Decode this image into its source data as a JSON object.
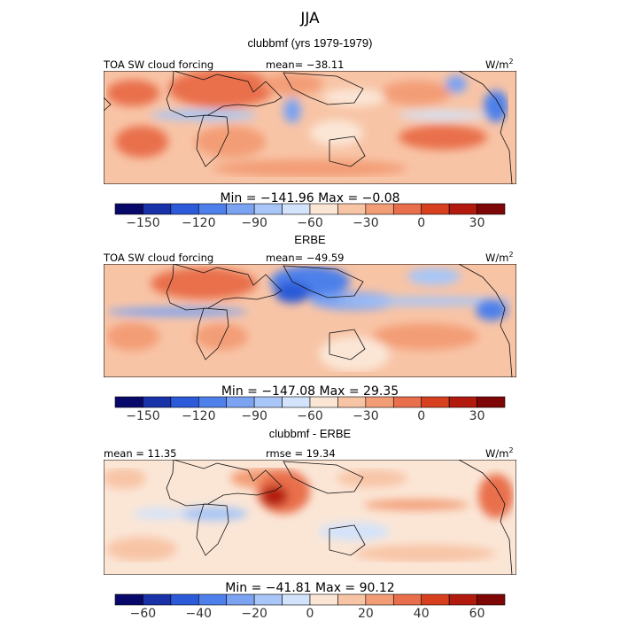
{
  "header": {
    "season": "JJA",
    "subtitle": "clubbmf (yrs 1979-1979)"
  },
  "chart_data": [
    {
      "type": "heatmap",
      "title": "clubbmf (yrs 1979-1979)",
      "left_label": "TOA SW cloud forcing",
      "center_label": "mean= −38.11",
      "units_text": "W/m",
      "units_exp": "2",
      "stats_label": "Min = −141.96 Max =  −0.08",
      "min": -141.96,
      "max": -0.08,
      "mean": -38.11,
      "colorbar": {
        "levels": [
          -165,
          -150,
          -135,
          -120,
          -105,
          -90,
          -75,
          -60,
          -45,
          -30,
          -15,
          0,
          15,
          30,
          45
        ],
        "tick_values": [
          -150,
          -120,
          -90,
          -60,
          -30,
          0,
          30
        ],
        "tick_labels": [
          "−150",
          "−120",
          "−90",
          "−60",
          "−30",
          "0",
          "30"
        ]
      }
    },
    {
      "type": "heatmap",
      "title": "ERBE",
      "left_label": "TOA SW cloud forcing",
      "center_label": "mean= −49.59",
      "units_text": "W/m",
      "units_exp": "2",
      "stats_label": "Min = −147.08 Max =  29.35",
      "min": -147.08,
      "max": 29.35,
      "mean": -49.59,
      "colorbar": {
        "levels": [
          -165,
          -150,
          -135,
          -120,
          -105,
          -90,
          -75,
          -60,
          -45,
          -30,
          -15,
          0,
          15,
          30,
          45
        ],
        "tick_values": [
          -150,
          -120,
          -90,
          -60,
          -30,
          0,
          30
        ],
        "tick_labels": [
          "−150",
          "−120",
          "−90",
          "−60",
          "−30",
          "0",
          "30"
        ]
      }
    },
    {
      "type": "heatmap",
      "title": "clubbmf - ERBE",
      "left_label": "mean =  11.35",
      "center_label": "rmse =  19.34",
      "units_text": "W/m",
      "units_exp": "2",
      "stats_label": "Min = −41.81 Max =  90.12",
      "min": -41.81,
      "max": 90.12,
      "mean": 11.35,
      "rmse": 19.34,
      "colorbar": {
        "levels": [
          -70,
          -60,
          -50,
          -40,
          -30,
          -20,
          -10,
          0,
          10,
          20,
          30,
          40,
          50,
          60,
          70
        ],
        "tick_values": [
          -60,
          -40,
          -20,
          0,
          20,
          40,
          60
        ],
        "tick_labels": [
          "−60",
          "−40",
          "−20",
          "0",
          "20",
          "40",
          "60"
        ]
      }
    }
  ],
  "colormap": [
    "#08086b",
    "#1932a8",
    "#2c5ad8",
    "#4d80ea",
    "#7ba3f2",
    "#a8c6f7",
    "#d2e3fb",
    "#fbe6d6",
    "#f8c4a6",
    "#f39d76",
    "#e96f4c",
    "#d6401f",
    "#b21a0e",
    "#7e0606"
  ]
}
